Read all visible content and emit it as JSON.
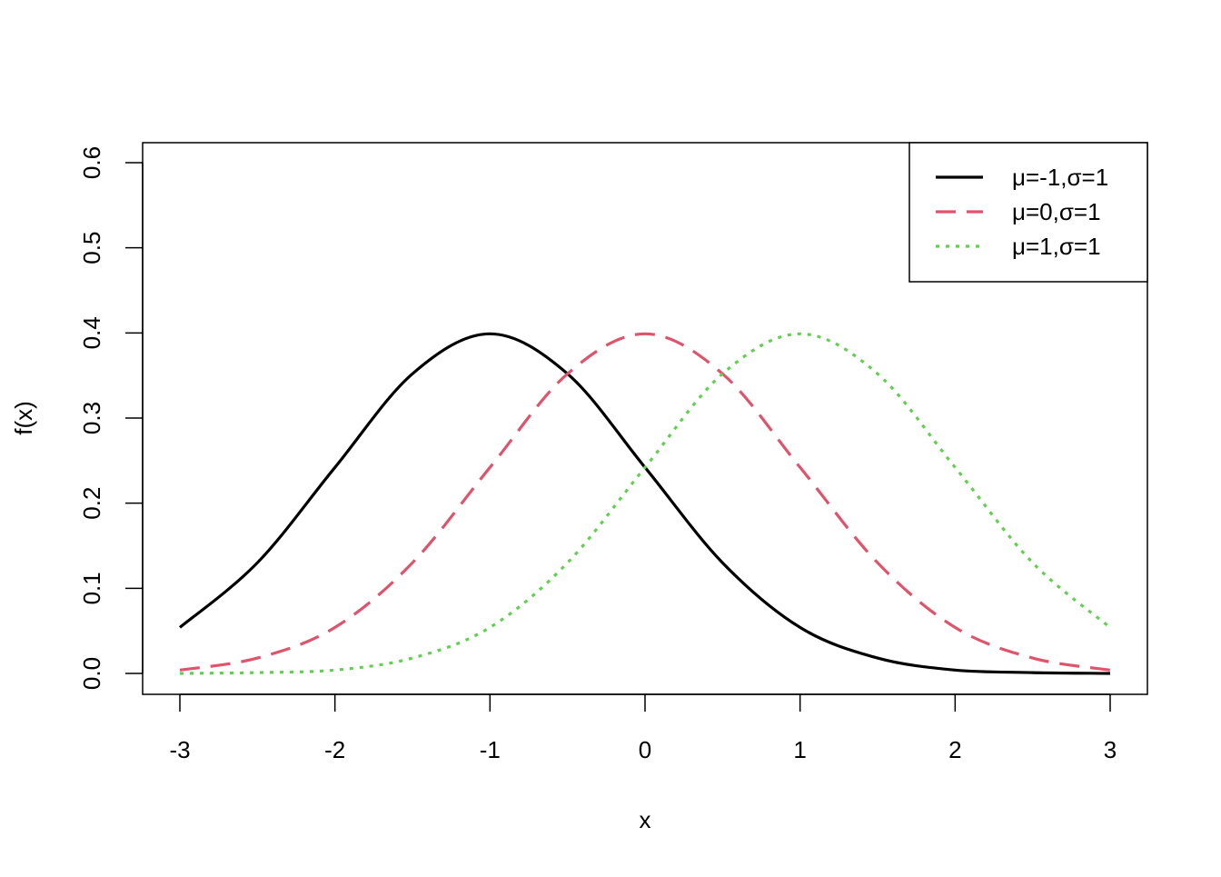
{
  "chart_data": {
    "type": "line",
    "title": "",
    "xlabel": "x",
    "ylabel": "f(x)",
    "xlim": [
      -3,
      3
    ],
    "ylim": [
      0,
      0.6
    ],
    "x_ticks": [
      -3,
      -2,
      -1,
      0,
      1,
      2,
      3
    ],
    "x_tick_labels": [
      "-3",
      "-2",
      "-1",
      "0",
      "1",
      "2",
      "3"
    ],
    "y_ticks": [
      0,
      0.1,
      0.2,
      0.3,
      0.4,
      0.5,
      0.6
    ],
    "y_tick_labels": [
      "0.0",
      "0.1",
      "0.2",
      "0.3",
      "0.4",
      "0.5",
      "0.6"
    ],
    "grid": false,
    "legend_position": "top-right",
    "x": [
      -3,
      -2.5,
      -2,
      -1.5,
      -1,
      -0.5,
      0,
      0.5,
      1,
      1.5,
      2,
      2.5,
      3
    ],
    "series": [
      {
        "name": "μ=-1,σ=1",
        "color": "#000000",
        "line_style": "solid",
        "values": [
          0.054,
          0.13,
          0.242,
          0.352,
          0.399,
          0.352,
          0.242,
          0.13,
          0.054,
          0.018,
          0.004,
          0.001,
          0.0
        ]
      },
      {
        "name": "μ=0,σ=1",
        "color": "#DF536B",
        "line_style": "dashed",
        "values": [
          0.004,
          0.018,
          0.054,
          0.13,
          0.242,
          0.352,
          0.399,
          0.352,
          0.242,
          0.13,
          0.054,
          0.018,
          0.004
        ]
      },
      {
        "name": "μ=1,σ=1",
        "color": "#61D04F",
        "line_style": "dotted",
        "values": [
          0.0,
          0.001,
          0.004,
          0.018,
          0.054,
          0.13,
          0.242,
          0.352,
          0.399,
          0.352,
          0.242,
          0.13,
          0.054
        ]
      }
    ]
  }
}
